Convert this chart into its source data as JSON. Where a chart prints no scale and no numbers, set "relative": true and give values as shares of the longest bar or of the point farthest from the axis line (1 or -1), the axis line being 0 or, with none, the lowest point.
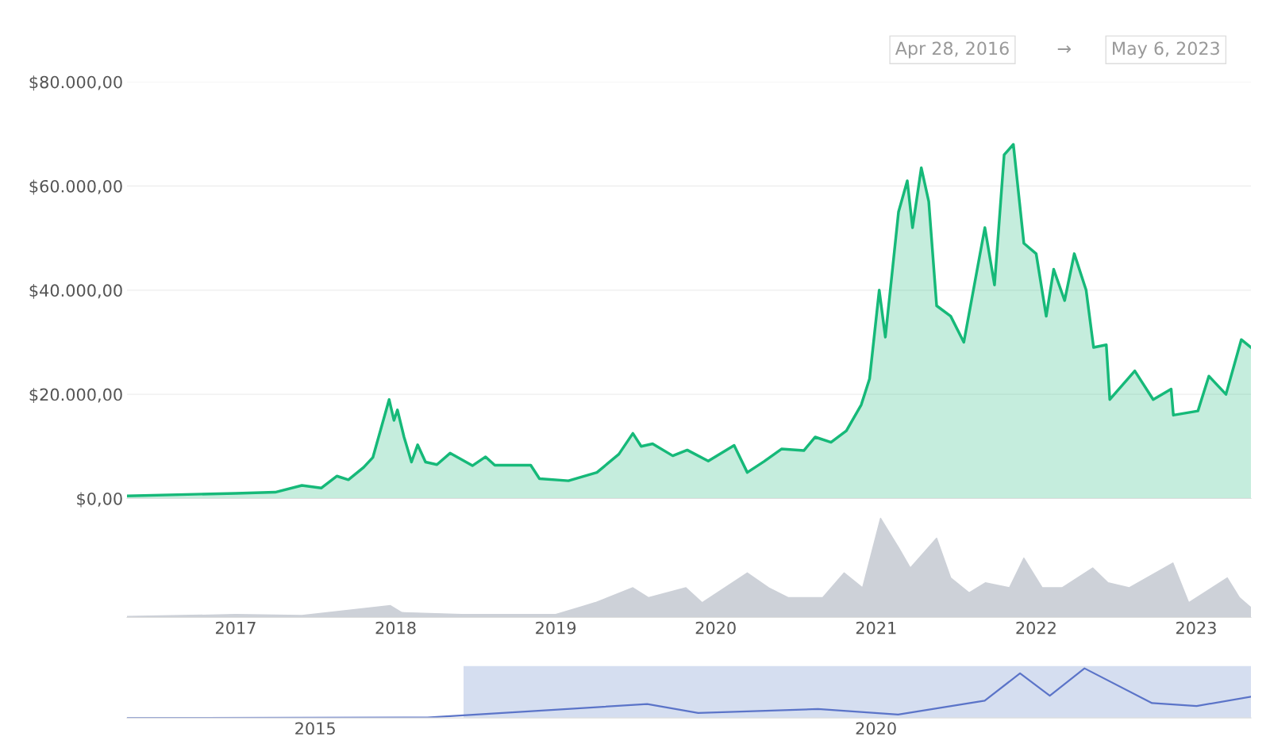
{
  "chart_data": [
    {
      "type": "area",
      "annotations": [
        "Apr 28, 2016",
        "→",
        "May 6, 2023"
      ],
      "grid": "y",
      "tick_labels": "y",
      "xlim": [
        "2016-04-28",
        "2023-05-06"
      ],
      "ylim": [
        0,
        80000
      ],
      "yticks": [
        {
          "value": 0,
          "label": "$0,00"
        },
        {
          "value": 20000,
          "label": "$20.000,00"
        },
        {
          "value": 40000,
          "label": "$40.000,00"
        },
        {
          "value": 60000,
          "label": "$60.000,00"
        },
        {
          "value": 80000,
          "label": "$80.000,00"
        }
      ],
      "series": [
        {
          "color": "#16b979",
          "x": [
            "2016-04-28",
            "2017-01-01",
            "2017-04-01",
            "2017-06-01",
            "2017-07-15",
            "2017-08-20",
            "2017-09-15",
            "2017-10-20",
            "2017-11-10",
            "2017-12-17",
            "2017-12-28",
            "2018-01-05",
            "2018-01-20",
            "2018-02-06",
            "2018-02-20",
            "2018-03-10",
            "2018-04-05",
            "2018-05-05",
            "2018-06-25",
            "2018-07-25",
            "2018-08-15",
            "2018-11-05",
            "2018-11-25",
            "2019-01-30",
            "2019-04-05",
            "2019-05-25",
            "2019-06-26",
            "2019-07-15",
            "2019-08-10",
            "2019-09-25",
            "2019-10-28",
            "2019-12-15",
            "2020-02-12",
            "2020-03-13",
            "2020-04-20",
            "2020-05-30",
            "2020-07-20",
            "2020-08-15",
            "2020-09-20",
            "2020-10-25",
            "2020-11-28",
            "2020-12-17",
            "2021-01-08",
            "2021-01-22",
            "2021-02-21",
            "2021-03-13",
            "2021-03-25",
            "2021-04-14",
            "2021-05-01",
            "2021-05-19",
            "2021-06-20",
            "2021-07-20",
            "2021-09-06",
            "2021-09-28",
            "2021-10-20",
            "2021-11-10",
            "2021-12-04",
            "2022-01-01",
            "2022-01-24",
            "2022-02-10",
            "2022-03-07",
            "2022-03-29",
            "2022-04-25",
            "2022-05-12",
            "2022-06-10",
            "2022-06-18",
            "2022-08-14",
            "2022-09-25",
            "2022-11-05",
            "2022-11-10",
            "2023-01-05",
            "2023-01-30",
            "2023-03-10",
            "2023-04-14",
            "2023-05-06"
          ],
          "values": [
            500,
            1000,
            1200,
            2500,
            2000,
            4300,
            3600,
            6000,
            7900,
            19000,
            15000,
            17000,
            11800,
            7000,
            10300,
            7000,
            6500,
            8700,
            6300,
            8000,
            6400,
            6400,
            3800,
            3400,
            5000,
            8500,
            12500,
            10000,
            10500,
            8200,
            9300,
            7200,
            10200,
            5000,
            7100,
            9500,
            9200,
            11800,
            10800,
            13000,
            18000,
            23000,
            40000,
            31000,
            55000,
            61000,
            52000,
            63500,
            57000,
            37000,
            35000,
            30000,
            52000,
            41000,
            66000,
            68000,
            49000,
            47000,
            35000,
            44000,
            38000,
            47000,
            40000,
            29000,
            29500,
            19000,
            24500,
            19000,
            21000,
            16000,
            16800,
            23500,
            20000,
            30500,
            29000
          ]
        }
      ]
    },
    {
      "type": "area",
      "relative": true,
      "tick_labels": "x",
      "xlim": [
        "2016-04-28",
        "2023-05-06"
      ],
      "xticks": [
        {
          "value": "2017-01-01",
          "label": "2017"
        },
        {
          "value": "2018-01-01",
          "label": "2018"
        },
        {
          "value": "2019-01-01",
          "label": "2019"
        },
        {
          "value": "2020-01-01",
          "label": "2020"
        },
        {
          "value": "2021-01-01",
          "label": "2021"
        },
        {
          "value": "2022-01-01",
          "label": "2022"
        },
        {
          "value": "2023-01-01",
          "label": "2023"
        }
      ],
      "series": [
        {
          "color": "#cdd1d8",
          "x": [
            "2016-04-28",
            "2017-01-01",
            "2017-06-01",
            "2017-12-20",
            "2018-01-15",
            "2018-06-01",
            "2019-01-01",
            "2019-04-01",
            "2019-06-26",
            "2019-08-01",
            "2019-10-25",
            "2019-12-01",
            "2020-03-13",
            "2020-05-01",
            "2020-06-15",
            "2020-09-01",
            "2020-10-20",
            "2020-12-01",
            "2021-01-11",
            "2021-02-22",
            "2021-03-20",
            "2021-05-19",
            "2021-06-20",
            "2021-08-01",
            "2021-09-07",
            "2021-11-01",
            "2021-12-04",
            "2022-01-15",
            "2022-03-01",
            "2022-05-10",
            "2022-06-14",
            "2022-08-01",
            "2022-11-09",
            "2022-12-15",
            "2023-03-13",
            "2023-04-10",
            "2023-05-06"
          ],
          "values": [
            0.01,
            0.03,
            0.02,
            0.12,
            0.05,
            0.03,
            0.03,
            0.15,
            0.3,
            0.2,
            0.3,
            0.15,
            0.45,
            0.3,
            0.2,
            0.2,
            0.45,
            0.3,
            1.0,
            0.7,
            0.5,
            0.8,
            0.4,
            0.25,
            0.35,
            0.3,
            0.6,
            0.3,
            0.3,
            0.5,
            0.35,
            0.3,
            0.55,
            0.15,
            0.4,
            0.2,
            0.1
          ]
        }
      ]
    },
    {
      "type": "line",
      "relative": true,
      "tick_labels": "x",
      "xlim": [
        "2013-04-28",
        "2023-05-06"
      ],
      "xticks": [
        {
          "value": "2015-01-01",
          "label": "2015"
        },
        {
          "value": "2020-01-01",
          "label": "2020"
        }
      ],
      "bands": [
        {
          "axis": "x",
          "from": "2016-04-28",
          "to": "2023-05-06",
          "color": "#d5def0"
        }
      ],
      "series": [
        {
          "color": "#5b74c8",
          "x": [
            "2013-04-28",
            "2016-01-01",
            "2017-12-17",
            "2018-06-01",
            "2019-06-26",
            "2020-03-13",
            "2020-12-20",
            "2021-04-14",
            "2021-07-20",
            "2021-11-10",
            "2022-06-18",
            "2022-11-10",
            "2023-05-06"
          ],
          "values": [
            0.0,
            0.01,
            0.28,
            0.1,
            0.18,
            0.07,
            0.35,
            0.9,
            0.45,
            1.0,
            0.3,
            0.24,
            0.43
          ]
        }
      ]
    }
  ]
}
